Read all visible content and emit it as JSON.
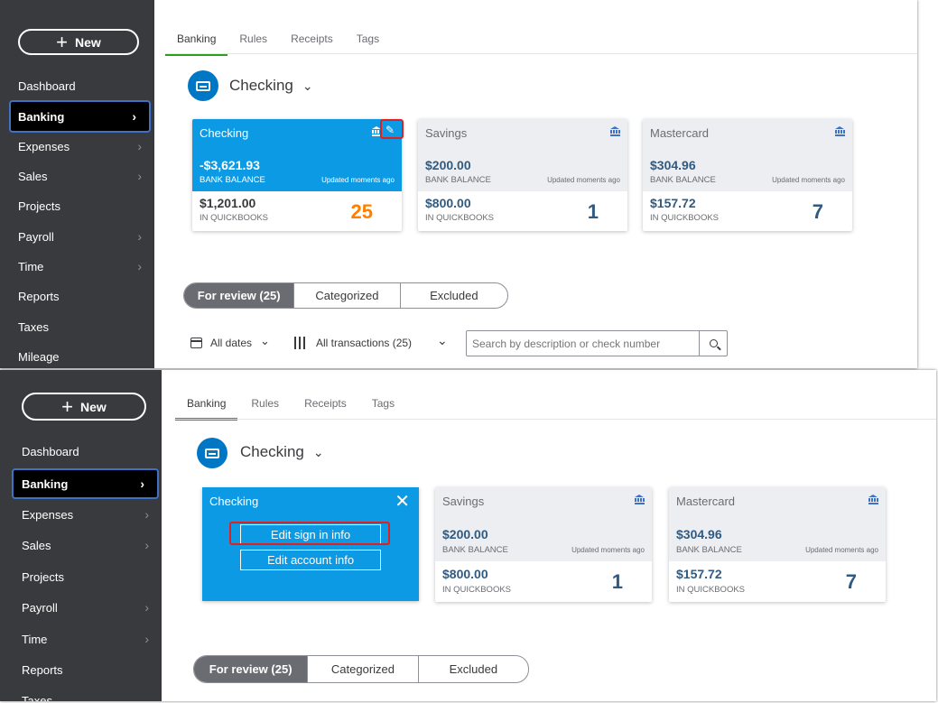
{
  "sidebar": {
    "new_label": "New",
    "items": [
      {
        "label": "Dashboard"
      },
      {
        "label": "Banking"
      },
      {
        "label": "Expenses"
      },
      {
        "label": "Sales"
      },
      {
        "label": "Projects"
      },
      {
        "label": "Payroll"
      },
      {
        "label": "Time"
      },
      {
        "label": "Reports"
      },
      {
        "label": "Taxes"
      },
      {
        "label": "Mileage"
      }
    ]
  },
  "tabs": [
    "Banking",
    "Rules",
    "Receipts",
    "Tags"
  ],
  "account_selector": {
    "label": "Checking"
  },
  "cards": [
    {
      "name": "Checking",
      "bank_balance": "-$3,621.93",
      "bank_balance_label": "BANK BALANCE",
      "updated": "Updated moments ago",
      "qb_balance": "$1,201.00",
      "qb_label": "IN QUICKBOOKS",
      "count": "25"
    },
    {
      "name": "Savings",
      "bank_balance": "$200.00",
      "bank_balance_label": "BANK BALANCE",
      "updated": "Updated moments ago",
      "qb_balance": "$800.00",
      "qb_label": "IN QUICKBOOKS",
      "count": "1"
    },
    {
      "name": "Mastercard",
      "bank_balance": "$304.96",
      "bank_balance_label": "BANK BALANCE",
      "updated": "Updated moments ago",
      "qb_balance": "$157.72",
      "qb_label": "IN QUICKBOOKS",
      "count": "7"
    }
  ],
  "edit_panel": {
    "name": "Checking",
    "close_glyph": "✕",
    "edit_sign_in": "Edit sign in info",
    "edit_account": "Edit account info"
  },
  "review_tabs": [
    "For review (25)",
    "Categorized",
    "Excluded"
  ],
  "filters": {
    "dates": "All dates",
    "transactions": "All transactions (25)",
    "search_placeholder": "Search by description or check number"
  },
  "colors": {
    "sidebar": "#393a3d",
    "card_blue": "#0d9ae5",
    "accent_green": "#2ca01c",
    "highlight_red": "#e11f1f",
    "count_orange": "#ff8000"
  }
}
